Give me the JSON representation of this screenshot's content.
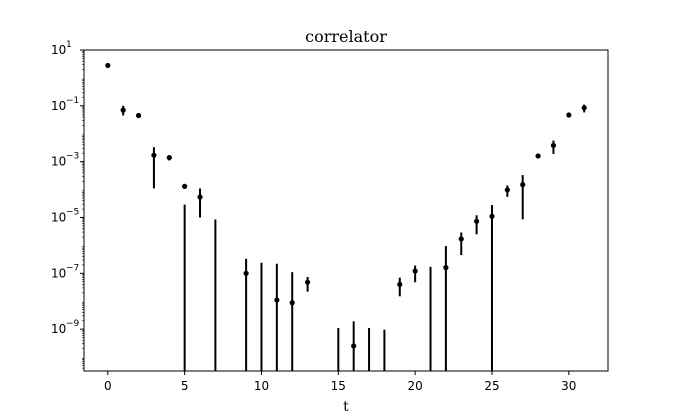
{
  "chart_data": {
    "type": "scatter",
    "title": "correlator",
    "xlabel": "t",
    "ylabel": "",
    "yscale": "log",
    "xlim": [
      -1.55,
      32.55
    ],
    "ylim_log10": [
      -10.5,
      1
    ],
    "xticks": [
      0,
      5,
      10,
      15,
      20,
      25,
      30
    ],
    "yticks": [
      {
        "exp": 1,
        "base": "10",
        "sup": "1"
      },
      {
        "exp": -1,
        "base": "10",
        "sup": "−1"
      },
      {
        "exp": -3,
        "base": "10",
        "sup": "−3"
      },
      {
        "exp": -5,
        "base": "10",
        "sup": "−5"
      },
      {
        "exp": -7,
        "base": "10",
        "sup": "−7"
      },
      {
        "exp": -9,
        "base": "10",
        "sup": "−9"
      }
    ],
    "points": [
      {
        "t": 0,
        "value": 2.8,
        "err_low": 2.7,
        "err_high": 2.9
      },
      {
        "t": 1,
        "value": 0.07,
        "err_low": 0.045,
        "err_high": 0.1
      },
      {
        "t": 2,
        "value": 0.045,
        "err_low": 0.042,
        "err_high": 0.048
      },
      {
        "t": 3,
        "value": 0.0017,
        "err_low": 0.00011,
        "err_high": 0.0033
      },
      {
        "t": 4,
        "value": 0.0014,
        "err_low": 0.0011,
        "err_high": 0.0017
      },
      {
        "t": 5,
        "value": 0.00013,
        "err_low": null,
        "err_high": 2.9e-05
      },
      {
        "t": 6,
        "value": 5.4e-05,
        "err_low": 1e-05,
        "err_high": 0.00011
      },
      {
        "t": 7,
        "value": null,
        "err_low": null,
        "err_high": 8.5e-06
      },
      {
        "t": 9,
        "value": 1e-07,
        "err_low": null,
        "err_high": 3.3e-07
      },
      {
        "t": 10,
        "value": null,
        "err_low": null,
        "err_high": 2.4e-07
      },
      {
        "t": 11,
        "value": 1.1e-08,
        "err_low": null,
        "err_high": 2.2e-07
      },
      {
        "t": 12,
        "value": 8.8e-09,
        "err_low": null,
        "err_high": 1.1e-07
      },
      {
        "t": 13,
        "value": 4.8e-08,
        "err_low": 2.2e-08,
        "err_high": 7.4e-08
      },
      {
        "t": 15,
        "value": null,
        "err_low": null,
        "err_high": 1.1e-09
      },
      {
        "t": 16,
        "value": 2.5e-10,
        "err_low": null,
        "err_high": 1.9e-09
      },
      {
        "t": 17,
        "value": null,
        "err_low": null,
        "err_high": 1.1e-09
      },
      {
        "t": 18,
        "value": null,
        "err_low": null,
        "err_high": 9.5e-10
      },
      {
        "t": 19,
        "value": 4e-08,
        "err_low": 1.5e-08,
        "err_high": 7e-08
      },
      {
        "t": 20,
        "value": 1.2e-07,
        "err_low": 4.8e-08,
        "err_high": 1.9e-07
      },
      {
        "t": 21,
        "value": null,
        "err_low": null,
        "err_high": 1.7e-07
      },
      {
        "t": 22,
        "value": 1.6e-07,
        "err_low": null,
        "err_high": 9.4e-07
      },
      {
        "t": 23,
        "value": 1.7e-06,
        "err_low": 4.5e-07,
        "err_high": 2.9e-06
      },
      {
        "t": 24,
        "value": 7.3e-06,
        "err_low": 2.5e-06,
        "err_high": 1.2e-05
      },
      {
        "t": 25,
        "value": 1.1e-05,
        "err_low": null,
        "err_high": 2.8e-05
      },
      {
        "t": 26,
        "value": 9.7e-05,
        "err_low": 5.5e-05,
        "err_high": 0.00014
      },
      {
        "t": 27,
        "value": 0.00015,
        "err_low": 8.5e-06,
        "err_high": 0.00033
      },
      {
        "t": 28,
        "value": 0.0016,
        "err_low": 0.0013,
        "err_high": 0.0019
      },
      {
        "t": 29,
        "value": 0.0038,
        "err_low": 0.0019,
        "err_high": 0.0057
      },
      {
        "t": 30,
        "value": 0.047,
        "err_low": 0.044,
        "err_high": 0.05
      },
      {
        "t": 31,
        "value": 0.085,
        "err_low": 0.058,
        "err_high": 0.11
      }
    ],
    "grid": false,
    "legend": "none",
    "marker_color": "#000000"
  }
}
